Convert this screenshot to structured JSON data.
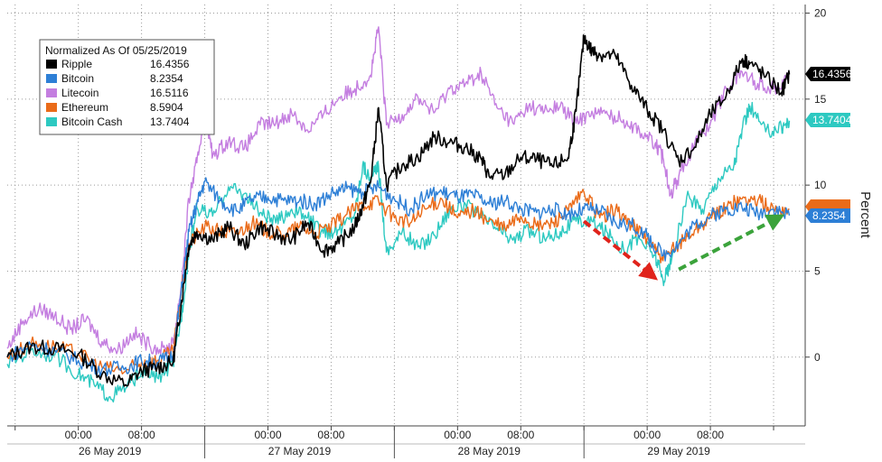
{
  "chart_data": {
    "type": "line",
    "title": "",
    "ylabel": "Percent",
    "ylim": [
      -4,
      20.5
    ],
    "yticks": [
      0,
      5,
      10,
      15,
      20
    ],
    "grid": true,
    "legend": {
      "title": "Normalized As Of 05/25/2019",
      "placement": "top-left"
    },
    "x_time_labels": [
      "00:00",
      "08:00",
      "00:00",
      "08:00",
      "00:00",
      "08:00",
      "00:00",
      "08:00"
    ],
    "x_date_labels": [
      "26 May 2019",
      "27 May 2019",
      "28 May 2019",
      "29 May 2019"
    ],
    "x_hours_range": [
      -9,
      92
    ],
    "series": [
      {
        "name": "Ripple",
        "last": "16.4356",
        "last_value": 16.4356,
        "color": "#000000",
        "points": [
          [
            -9,
            0
          ],
          [
            -6,
            0.6
          ],
          [
            -3,
            0.5
          ],
          [
            0,
            0.2
          ],
          [
            3,
            -1
          ],
          [
            6,
            -1.6
          ],
          [
            8,
            -0.8
          ],
          [
            10,
            -0.6
          ],
          [
            12,
            -0.3
          ],
          [
            13,
            3
          ],
          [
            14,
            6.5
          ],
          [
            15,
            7.3
          ],
          [
            17,
            6.8
          ],
          [
            19,
            7.6
          ],
          [
            21,
            6.5
          ],
          [
            23,
            7.6
          ],
          [
            25,
            7.1
          ],
          [
            27,
            6.8
          ],
          [
            29,
            7.8
          ],
          [
            31,
            6.2
          ],
          [
            33,
            6.6
          ],
          [
            35,
            7.6
          ],
          [
            36,
            8.8
          ],
          [
            37,
            10.2
          ],
          [
            38,
            14.5
          ],
          [
            39,
            10
          ],
          [
            41,
            11.2
          ],
          [
            43,
            11.6
          ],
          [
            45,
            12.8
          ],
          [
            47,
            12.5
          ],
          [
            49,
            12.2
          ],
          [
            51,
            11.5
          ],
          [
            52,
            10.5
          ],
          [
            54,
            10.6
          ],
          [
            56,
            11.6
          ],
          [
            58,
            11.5
          ],
          [
            60,
            11.1
          ],
          [
            62,
            11.6
          ],
          [
            63,
            14.3
          ],
          [
            64,
            18.6
          ],
          [
            65,
            17.8
          ],
          [
            66,
            17.6
          ],
          [
            68,
            17.5
          ],
          [
            70,
            15.8
          ],
          [
            72,
            14.4
          ],
          [
            74,
            13.2
          ],
          [
            76,
            11.4
          ],
          [
            78,
            12.2
          ],
          [
            80,
            14.1
          ],
          [
            82,
            15.2
          ],
          [
            84,
            17.3
          ],
          [
            85,
            17.1
          ],
          [
            87,
            16.3
          ],
          [
            89,
            15.4
          ],
          [
            90,
            16.4356
          ]
        ]
      },
      {
        "name": "Bitcoin",
        "last": "8.2354",
        "last_value": 8.2354,
        "color": "#2d7fd6",
        "points": [
          [
            -9,
            0
          ],
          [
            -6,
            0.7
          ],
          [
            -3,
            0.4
          ],
          [
            0,
            -0.2
          ],
          [
            3,
            -0.7
          ],
          [
            6,
            -0.6
          ],
          [
            8,
            -0.2
          ],
          [
            10,
            -0.3
          ],
          [
            12,
            0.1
          ],
          [
            13,
            3.7
          ],
          [
            14,
            7.3
          ],
          [
            15,
            8.9
          ],
          [
            16,
            10.2
          ],
          [
            18,
            9.1
          ],
          [
            20,
            8.5
          ],
          [
            22,
            9.2
          ],
          [
            24,
            9.3
          ],
          [
            26,
            9.1
          ],
          [
            28,
            9.1
          ],
          [
            30,
            8.9
          ],
          [
            32,
            9.5
          ],
          [
            34,
            9.8
          ],
          [
            36,
            9.6
          ],
          [
            38,
            9.9
          ],
          [
            40,
            9.2
          ],
          [
            42,
            8.6
          ],
          [
            44,
            9.4
          ],
          [
            46,
            9.6
          ],
          [
            48,
            9.3
          ],
          [
            50,
            9.4
          ],
          [
            52,
            8.9
          ],
          [
            54,
            9.1
          ],
          [
            56,
            8.6
          ],
          [
            58,
            8.4
          ],
          [
            60,
            8.6
          ],
          [
            62,
            8.3
          ],
          [
            64,
            8.6
          ],
          [
            66,
            8.5
          ],
          [
            68,
            7.8
          ],
          [
            70,
            7.7
          ],
          [
            72,
            7
          ],
          [
            74,
            5.9
          ],
          [
            76,
            6.6
          ],
          [
            78,
            7.7
          ],
          [
            80,
            8.2
          ],
          [
            82,
            8.6
          ],
          [
            84,
            8.7
          ],
          [
            86,
            8.4
          ],
          [
            88,
            8.6
          ],
          [
            90,
            8.2354
          ]
        ]
      },
      {
        "name": "Litecoin",
        "last": "16.5116",
        "last_value": 16.5116,
        "color": "#c47ee0",
        "points": [
          [
            -9,
            0.5
          ],
          [
            -7,
            2.1
          ],
          [
            -5,
            2.8
          ],
          [
            -3,
            2.4
          ],
          [
            -1,
            1.6
          ],
          [
            1,
            2.2
          ],
          [
            3,
            0.9
          ],
          [
            5,
            0.4
          ],
          [
            7,
            1.4
          ],
          [
            9,
            0.7
          ],
          [
            11,
            0.4
          ],
          [
            12,
            0.8
          ],
          [
            13,
            4
          ],
          [
            14,
            9.2
          ],
          [
            15,
            11.3
          ],
          [
            16,
            14.2
          ],
          [
            17,
            11.7
          ],
          [
            19,
            12.6
          ],
          [
            21,
            12.1
          ],
          [
            23,
            13.5
          ],
          [
            25,
            13.6
          ],
          [
            27,
            14.2
          ],
          [
            29,
            13.2
          ],
          [
            31,
            14.1
          ],
          [
            33,
            15.1
          ],
          [
            35,
            15.6
          ],
          [
            37,
            16.4
          ],
          [
            38,
            19.2
          ],
          [
            39,
            13.5
          ],
          [
            41,
            14.1
          ],
          [
            43,
            15.1
          ],
          [
            45,
            14.2
          ],
          [
            47,
            15.6
          ],
          [
            49,
            15.9
          ],
          [
            51,
            16.5
          ],
          [
            53,
            14.5
          ],
          [
            55,
            13.6
          ],
          [
            57,
            14.6
          ],
          [
            59,
            14.3
          ],
          [
            61,
            14.6
          ],
          [
            63,
            13.6
          ],
          [
            65,
            14.3
          ],
          [
            67,
            14.1
          ],
          [
            69,
            13.8
          ],
          [
            71,
            13.2
          ],
          [
            73,
            12.4
          ],
          [
            74,
            11.6
          ],
          [
            75,
            9.5
          ],
          [
            76,
            10.5
          ],
          [
            78,
            12.4
          ],
          [
            80,
            13.6
          ],
          [
            82,
            15.6
          ],
          [
            84,
            16.6
          ],
          [
            86,
            15.9
          ],
          [
            88,
            15.6
          ],
          [
            90,
            16.5116
          ]
        ]
      },
      {
        "name": "Ethereum",
        "last": "8.5904",
        "last_value": 8.5904,
        "color": "#ea6b19",
        "points": [
          [
            -9,
            0
          ],
          [
            -6,
            0.8
          ],
          [
            -3,
            0.6
          ],
          [
            0,
            0.2
          ],
          [
            3,
            -0.6
          ],
          [
            6,
            -0.8
          ],
          [
            8,
            -0.3
          ],
          [
            10,
            -0.2
          ],
          [
            12,
            0.3
          ],
          [
            13,
            3.7
          ],
          [
            14,
            6.6
          ],
          [
            16,
            7.6
          ],
          [
            18,
            7.3
          ],
          [
            20,
            7.2
          ],
          [
            22,
            7.8
          ],
          [
            24,
            7.3
          ],
          [
            26,
            7.1
          ],
          [
            28,
            7.6
          ],
          [
            30,
            7.2
          ],
          [
            32,
            7.6
          ],
          [
            34,
            8.3
          ],
          [
            36,
            8.9
          ],
          [
            38,
            9.1
          ],
          [
            40,
            8.1
          ],
          [
            42,
            7.8
          ],
          [
            44,
            8.6
          ],
          [
            46,
            9.2
          ],
          [
            48,
            8.1
          ],
          [
            50,
            8.6
          ],
          [
            52,
            7.9
          ],
          [
            54,
            7.5
          ],
          [
            56,
            8.2
          ],
          [
            58,
            7.6
          ],
          [
            60,
            7.8
          ],
          [
            62,
            8.5
          ],
          [
            64,
            9.6
          ],
          [
            66,
            8.1
          ],
          [
            68,
            8.6
          ],
          [
            70,
            7.7
          ],
          [
            72,
            6.9
          ],
          [
            74,
            5.6
          ],
          [
            76,
            6.6
          ],
          [
            78,
            7.4
          ],
          [
            80,
            8.1
          ],
          [
            82,
            8.7
          ],
          [
            84,
            9.2
          ],
          [
            86,
            9.1
          ],
          [
            88,
            8.6
          ],
          [
            90,
            8.5904
          ]
        ]
      },
      {
        "name": "Bitcoin Cash",
        "last": "13.7404",
        "last_value": 13.7404,
        "color": "#2dc9c1",
        "points": [
          [
            -9,
            -0.4
          ],
          [
            -6,
            0.4
          ],
          [
            -3,
            0.1
          ],
          [
            0,
            -1
          ],
          [
            2,
            -1.6
          ],
          [
            4,
            -2.3
          ],
          [
            6,
            -1.8
          ],
          [
            8,
            -0.8
          ],
          [
            10,
            -1.2
          ],
          [
            12,
            -0.4
          ],
          [
            13,
            2.2
          ],
          [
            14,
            6.1
          ],
          [
            15,
            8.7
          ],
          [
            17,
            8.2
          ],
          [
            19,
            9.9
          ],
          [
            21,
            9.5
          ],
          [
            23,
            8.4
          ],
          [
            25,
            7.8
          ],
          [
            27,
            8.6
          ],
          [
            29,
            8.1
          ],
          [
            31,
            7.2
          ],
          [
            33,
            7.4
          ],
          [
            35,
            8.4
          ],
          [
            36,
            11.2
          ],
          [
            37,
            10.3
          ],
          [
            38,
            11.1
          ],
          [
            39,
            6.1
          ],
          [
            41,
            7.3
          ],
          [
            43,
            6.4
          ],
          [
            45,
            7.1
          ],
          [
            47,
            8.6
          ],
          [
            49,
            8.9
          ],
          [
            51,
            8.1
          ],
          [
            53,
            7.5
          ],
          [
            55,
            6.8
          ],
          [
            57,
            7.4
          ],
          [
            59,
            6.9
          ],
          [
            61,
            7.3
          ],
          [
            63,
            7.9
          ],
          [
            65,
            7.9
          ],
          [
            67,
            7.2
          ],
          [
            69,
            6.3
          ],
          [
            71,
            6.9
          ],
          [
            73,
            5.9
          ],
          [
            74,
            4.5
          ],
          [
            75,
            5.4
          ],
          [
            77,
            9.3
          ],
          [
            79,
            8.6
          ],
          [
            81,
            10.4
          ],
          [
            83,
            11.2
          ],
          [
            84,
            13.2
          ],
          [
            85,
            14.6
          ],
          [
            87,
            13.1
          ],
          [
            89,
            13.4
          ],
          [
            90,
            13.7404
          ]
        ]
      }
    ],
    "annotations": [
      {
        "type": "arrow",
        "color": "#e0231b",
        "from": [
          64,
          7.9
        ],
        "to": [
          73,
          4.6
        ]
      },
      {
        "type": "arrow",
        "color": "#3ba33b",
        "from": [
          76,
          5.1
        ],
        "to": [
          89,
          8.2
        ]
      }
    ]
  }
}
